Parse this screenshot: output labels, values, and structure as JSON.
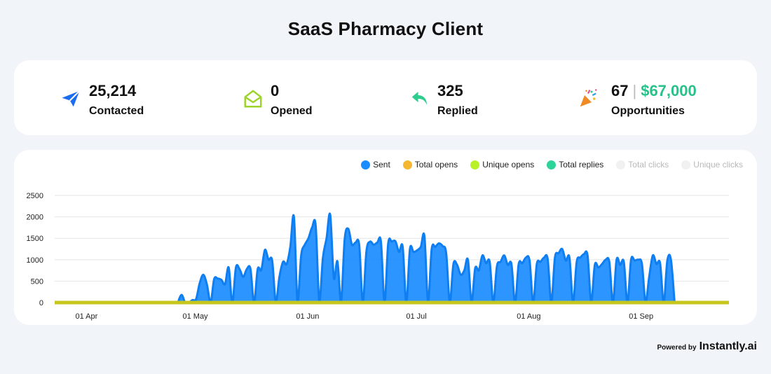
{
  "page": {
    "title": "SaaS Pharmacy Client"
  },
  "stats": [
    {
      "key": "contacted",
      "value": "25,214",
      "label": "Contacted",
      "icon": "paper-plane-icon",
      "color": "#1a6cf0"
    },
    {
      "key": "opened",
      "value": "0",
      "label": "Opened",
      "icon": "open-envelope-icon",
      "color": "#9ed42a"
    },
    {
      "key": "replied",
      "value": "325",
      "label": "Replied",
      "icon": "reply-arrow-icon",
      "color": "#2dcc8f"
    },
    {
      "key": "opportunities",
      "value": "67",
      "separator": "|",
      "money": "$67,000",
      "label": "Opportunities",
      "icon": "party-popper-icon",
      "color": "#f08a24"
    }
  ],
  "footer": {
    "powered_by": "Powered by",
    "brand": "Instantly.ai"
  },
  "chart_data": {
    "type": "area",
    "legend": [
      {
        "name": "Sent",
        "color": "#1a8cff",
        "active": true
      },
      {
        "name": "Total opens",
        "color": "#f5b731",
        "active": true
      },
      {
        "name": "Unique opens",
        "color": "#b8f02a",
        "active": true
      },
      {
        "name": "Total replies",
        "color": "#2ed39a",
        "active": true
      },
      {
        "name": "Total clicks",
        "color": "#f0f0f0",
        "active": false
      },
      {
        "name": "Unique clicks",
        "color": "#f0f0f0",
        "active": false
      }
    ],
    "legend_position": "top-right",
    "x_start": "2024-03-24",
    "x_end": "2024-09-26",
    "xticks": [
      {
        "label": "01 Apr",
        "date": "2024-04-01"
      },
      {
        "label": "01 May",
        "date": "2024-05-01"
      },
      {
        "label": "01 Jun",
        "date": "2024-06-01"
      },
      {
        "label": "01 Jul",
        "date": "2024-07-01"
      },
      {
        "label": "01 Aug",
        "date": "2024-08-01"
      },
      {
        "label": "01 Sep",
        "date": "2024-09-01"
      }
    ],
    "ylim": [
      0,
      2500
    ],
    "yticks": [
      "0",
      "500",
      "1000",
      "1500",
      "2000",
      "2500"
    ],
    "grid": true,
    "series": [
      {
        "name": "Sent",
        "color": "#1a8cff",
        "points": [
          [
            "2024-04-27",
            0
          ],
          [
            "2024-04-28",
            180
          ],
          [
            "2024-04-29",
            0
          ],
          [
            "2024-04-30",
            0
          ],
          [
            "2024-05-01",
            60
          ],
          [
            "2024-05-02",
            80
          ],
          [
            "2024-05-03",
            450
          ],
          [
            "2024-05-04",
            650
          ],
          [
            "2024-05-05",
            420
          ],
          [
            "2024-05-06",
            0
          ],
          [
            "2024-05-07",
            550
          ],
          [
            "2024-05-08",
            560
          ],
          [
            "2024-05-09",
            530
          ],
          [
            "2024-05-10",
            430
          ],
          [
            "2024-05-11",
            820
          ],
          [
            "2024-05-12",
            0
          ],
          [
            "2024-05-13",
            820
          ],
          [
            "2024-05-14",
            780
          ],
          [
            "2024-05-15",
            600
          ],
          [
            "2024-05-16",
            780
          ],
          [
            "2024-05-17",
            790
          ],
          [
            "2024-05-18",
            0
          ],
          [
            "2024-05-19",
            780
          ],
          [
            "2024-05-20",
            760
          ],
          [
            "2024-05-21",
            1230
          ],
          [
            "2024-05-22",
            1000
          ],
          [
            "2024-05-23",
            980
          ],
          [
            "2024-05-24",
            0
          ],
          [
            "2024-05-25",
            600
          ],
          [
            "2024-05-26",
            950
          ],
          [
            "2024-05-27",
            900
          ],
          [
            "2024-05-28",
            1300
          ],
          [
            "2024-05-29",
            2000
          ],
          [
            "2024-05-30",
            0
          ],
          [
            "2024-05-31",
            1100
          ],
          [
            "2024-06-01",
            1350
          ],
          [
            "2024-06-02",
            1500
          ],
          [
            "2024-06-03",
            1750
          ],
          [
            "2024-06-04",
            1800
          ],
          [
            "2024-06-05",
            0
          ],
          [
            "2024-06-06",
            1050
          ],
          [
            "2024-06-07",
            1500
          ],
          [
            "2024-06-08",
            2050
          ],
          [
            "2024-06-09",
            580
          ],
          [
            "2024-06-10",
            960
          ],
          [
            "2024-06-11",
            0
          ],
          [
            "2024-06-12",
            1480
          ],
          [
            "2024-06-13",
            1720
          ],
          [
            "2024-06-14",
            1350
          ],
          [
            "2024-06-15",
            1400
          ],
          [
            "2024-06-16",
            1350
          ],
          [
            "2024-06-17",
            0
          ],
          [
            "2024-06-18",
            1200
          ],
          [
            "2024-06-19",
            1420
          ],
          [
            "2024-06-20",
            1350
          ],
          [
            "2024-06-21",
            1400
          ],
          [
            "2024-06-22",
            1420
          ],
          [
            "2024-06-23",
            0
          ],
          [
            "2024-06-24",
            1380
          ],
          [
            "2024-06-25",
            1420
          ],
          [
            "2024-06-26",
            1430
          ],
          [
            "2024-06-27",
            1180
          ],
          [
            "2024-06-28",
            1300
          ],
          [
            "2024-06-29",
            0
          ],
          [
            "2024-06-30",
            1250
          ],
          [
            "2024-07-01",
            1180
          ],
          [
            "2024-07-02",
            1220
          ],
          [
            "2024-07-03",
            1300
          ],
          [
            "2024-07-04",
            1550
          ],
          [
            "2024-07-05",
            0
          ],
          [
            "2024-07-06",
            1250
          ],
          [
            "2024-07-07",
            1300
          ],
          [
            "2024-07-08",
            1380
          ],
          [
            "2024-07-09",
            1320
          ],
          [
            "2024-07-10",
            1150
          ],
          [
            "2024-07-11",
            0
          ],
          [
            "2024-07-12",
            900
          ],
          [
            "2024-07-13",
            880
          ],
          [
            "2024-07-14",
            650
          ],
          [
            "2024-07-15",
            750
          ],
          [
            "2024-07-16",
            1000
          ],
          [
            "2024-07-17",
            0
          ],
          [
            "2024-07-18",
            800
          ],
          [
            "2024-07-19",
            750
          ],
          [
            "2024-07-20",
            1100
          ],
          [
            "2024-07-21",
            920
          ],
          [
            "2024-07-22",
            950
          ],
          [
            "2024-07-23",
            0
          ],
          [
            "2024-07-24",
            850
          ],
          [
            "2024-07-25",
            950
          ],
          [
            "2024-07-26",
            1100
          ],
          [
            "2024-07-27",
            880
          ],
          [
            "2024-07-28",
            900
          ],
          [
            "2024-07-29",
            0
          ],
          [
            "2024-07-30",
            900
          ],
          [
            "2024-07-31",
            920
          ],
          [
            "2024-08-01",
            1050
          ],
          [
            "2024-08-02",
            980
          ],
          [
            "2024-08-03",
            0
          ],
          [
            "2024-08-04",
            900
          ],
          [
            "2024-08-05",
            950
          ],
          [
            "2024-08-06",
            1050
          ],
          [
            "2024-08-07",
            1020
          ],
          [
            "2024-08-08",
            0
          ],
          [
            "2024-08-09",
            1050
          ],
          [
            "2024-08-10",
            1150
          ],
          [
            "2024-08-11",
            1250
          ],
          [
            "2024-08-12",
            980
          ],
          [
            "2024-08-13",
            1050
          ],
          [
            "2024-08-14",
            0
          ],
          [
            "2024-08-15",
            950
          ],
          [
            "2024-08-16",
            1050
          ],
          [
            "2024-08-17",
            1130
          ],
          [
            "2024-08-18",
            1100
          ],
          [
            "2024-08-19",
            0
          ],
          [
            "2024-08-20",
            880
          ],
          [
            "2024-08-21",
            820
          ],
          [
            "2024-08-22",
            900
          ],
          [
            "2024-08-23",
            1000
          ],
          [
            "2024-08-24",
            950
          ],
          [
            "2024-08-25",
            0
          ],
          [
            "2024-08-26",
            1000
          ],
          [
            "2024-08-27",
            880
          ],
          [
            "2024-08-28",
            950
          ],
          [
            "2024-08-29",
            0
          ],
          [
            "2024-08-30",
            1000
          ],
          [
            "2024-08-31",
            980
          ],
          [
            "2024-09-01",
            1000
          ],
          [
            "2024-09-02",
            900
          ],
          [
            "2024-09-03",
            0
          ],
          [
            "2024-09-04",
            600
          ],
          [
            "2024-09-05",
            1100
          ],
          [
            "2024-09-06",
            900
          ],
          [
            "2024-09-07",
            920
          ],
          [
            "2024-09-08",
            0
          ],
          [
            "2024-09-09",
            980
          ],
          [
            "2024-09-10",
            1000
          ],
          [
            "2024-09-11",
            0
          ]
        ]
      }
    ]
  }
}
